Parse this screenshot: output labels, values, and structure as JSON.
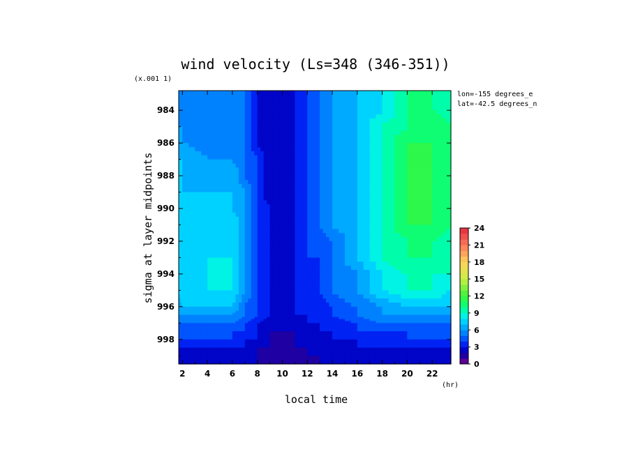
{
  "chart_data": {
    "type": "heatmap",
    "title": "wind velocity (Ls=348 (346-351))",
    "xlabel": "local time",
    "ylabel": "sigma at layer midpoints",
    "x_unit": "(hr)",
    "y_scale_note": "(x.001 1)",
    "annotations": [
      "lon=-155 degrees_e",
      "lat=-42.5 degrees_n"
    ],
    "x_ticks": [
      "2",
      "4",
      "6",
      "8",
      "10",
      "12",
      "14",
      "16",
      "18",
      "20",
      "22"
    ],
    "y_ticks": [
      "984",
      "986",
      "988",
      "990",
      "992",
      "994",
      "996",
      "998"
    ],
    "xlim": [
      1.7,
      23.5
    ],
    "ylim": [
      999.5,
      982.8
    ],
    "colorbar": {
      "ticks": [
        "0",
        "3",
        "6",
        "9",
        "12",
        "15",
        "18",
        "21",
        "24"
      ],
      "range": [
        0,
        24
      ],
      "step": 1
    },
    "x": [
      1.7,
      2,
      4,
      6,
      7,
      8,
      9,
      10,
      11,
      12,
      13,
      14,
      16,
      18,
      20,
      22,
      23.5
    ],
    "y": [
      982.8,
      984,
      985,
      986,
      987,
      988,
      989,
      990,
      991,
      992,
      993,
      994,
      995,
      996,
      996.5,
      997,
      997.5,
      998,
      998.5,
      999,
      999.5
    ],
    "z": [
      [
        5,
        5,
        5,
        6,
        5,
        3,
        2,
        2,
        3,
        4,
        5,
        6,
        7,
        8,
        10,
        10,
        9
      ],
      [
        5,
        5,
        5,
        6,
        5,
        3,
        2,
        2,
        3,
        4,
        5,
        6,
        7,
        8,
        10,
        10,
        9
      ],
      [
        6,
        6,
        5,
        6,
        5,
        3,
        2,
        2,
        3,
        4,
        5,
        6,
        7,
        9,
        10,
        11,
        10
      ],
      [
        6,
        6,
        5,
        6,
        5,
        3,
        2,
        2,
        3,
        4,
        5,
        6,
        7,
        9,
        11,
        11,
        10
      ],
      [
        7,
        7,
        6,
        6,
        5,
        4,
        2,
        2,
        3,
        4,
        5,
        6,
        7,
        9,
        11,
        11,
        10
      ],
      [
        7,
        7,
        6,
        7,
        5,
        4,
        2,
        2,
        3,
        4,
        5,
        6,
        7,
        9,
        11,
        11,
        10
      ],
      [
        7,
        7,
        7,
        7,
        6,
        4,
        2,
        2,
        3,
        4,
        5,
        6,
        7,
        9,
        11,
        11,
        10
      ],
      [
        7,
        7,
        7,
        7,
        6,
        4,
        3,
        2,
        3,
        4,
        5,
        6,
        7,
        9,
        11,
        11,
        10
      ],
      [
        7,
        7,
        7,
        8,
        6,
        4,
        3,
        2,
        3,
        4,
        5,
        6,
        7,
        9,
        11,
        11,
        10
      ],
      [
        7,
        7,
        7,
        8,
        6,
        4,
        3,
        2,
        3,
        4,
        4,
        5,
        7,
        9,
        10,
        10,
        9
      ],
      [
        7,
        7,
        8,
        8,
        6,
        4,
        3,
        2,
        3,
        4,
        4,
        5,
        7,
        9,
        10,
        10,
        9
      ],
      [
        7,
        7,
        8,
        8,
        6,
        4,
        3,
        2,
        3,
        3,
        4,
        5,
        6,
        8,
        9,
        9,
        9
      ],
      [
        7,
        8,
        8,
        8,
        6,
        4,
        3,
        2,
        3,
        3,
        4,
        5,
        6,
        8,
        9,
        9,
        8
      ],
      [
        6,
        7,
        7,
        7,
        5,
        4,
        3,
        2,
        3,
        3,
        3,
        4,
        5,
        6,
        7,
        7,
        7
      ],
      [
        6,
        6,
        6,
        6,
        5,
        4,
        3,
        2,
        3,
        3,
        3,
        4,
        5,
        6,
        6,
        6,
        6
      ],
      [
        5,
        5,
        5,
        5,
        4,
        3,
        2,
        2,
        2,
        3,
        3,
        3,
        4,
        5,
        5,
        5,
        5
      ],
      [
        5,
        4,
        4,
        4,
        4,
        3,
        2,
        2,
        2,
        2,
        3,
        3,
        4,
        4,
        4,
        4,
        4
      ],
      [
        4,
        4,
        4,
        4,
        3,
        3,
        2,
        1,
        2,
        2,
        2,
        3,
        3,
        3,
        4,
        4,
        4
      ],
      [
        3,
        3,
        3,
        3,
        3,
        2,
        2,
        1,
        2,
        2,
        2,
        2,
        3,
        3,
        3,
        3,
        3
      ],
      [
        2,
        2,
        2,
        2,
        2,
        2,
        1,
        1,
        1,
        2,
        2,
        2,
        2,
        2,
        2,
        2,
        2
      ],
      [
        2,
        2,
        2,
        2,
        2,
        2,
        1,
        1,
        1,
        1,
        2,
        2,
        2,
        2,
        2,
        2,
        2
      ]
    ]
  }
}
